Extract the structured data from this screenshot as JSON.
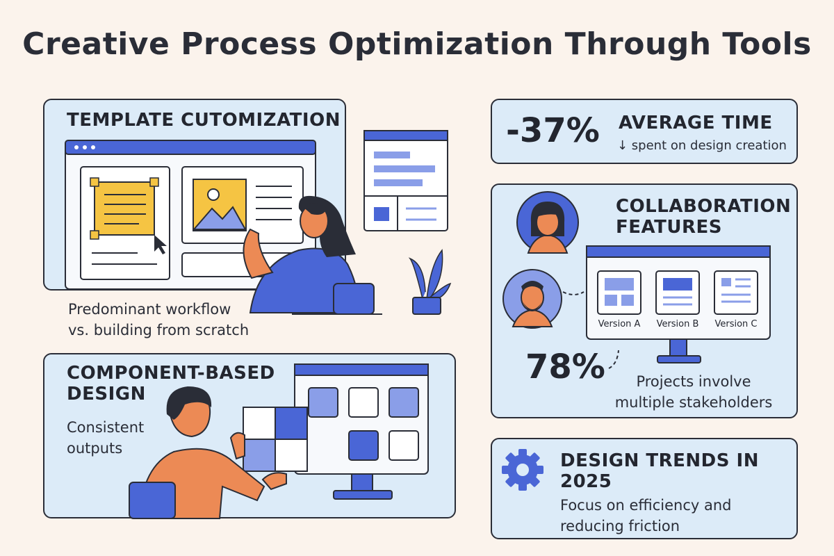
{
  "title": "Creative Process Optimization Through Tools",
  "template_panel": {
    "heading": "TEMPLATE CUTOMIZATION",
    "caption_line1": "Predominant workflow",
    "caption_line2": "vs. building from scratch"
  },
  "component_panel": {
    "heading_line1": "COMPONENT-BASED",
    "heading_line2": "DESIGN",
    "subtitle_line1": "Consistent",
    "subtitle_line2": "outputs"
  },
  "time_panel": {
    "value": "-37%",
    "heading": "AVERAGE TIME",
    "subtitle": "↓ spent on design creation"
  },
  "collab_panel": {
    "heading_line1": "COLLABORATION",
    "heading_line2": "FEATURES",
    "versions": [
      "Version A",
      "Version B",
      "Version C"
    ],
    "stat_value": "78%",
    "stat_line1": "Projects involve",
    "stat_line2": "multiple stakeholders"
  },
  "trends_panel": {
    "heading_line1": "DESIGN TRENDS IN",
    "heading_line2": "2025",
    "subtitle_line1": "Focus on efficiency and",
    "subtitle_line2": "reducing friction"
  },
  "colors": {
    "background": "#fbf3ec",
    "panel": "#dcebf8",
    "accent_blue": "#4a66d6",
    "yellow": "#f5c443",
    "orange": "#ec8a55",
    "dark": "#2a2d37"
  },
  "icons": [
    "gear-icon",
    "image-icon",
    "cursor-icon",
    "plant-icon"
  ]
}
